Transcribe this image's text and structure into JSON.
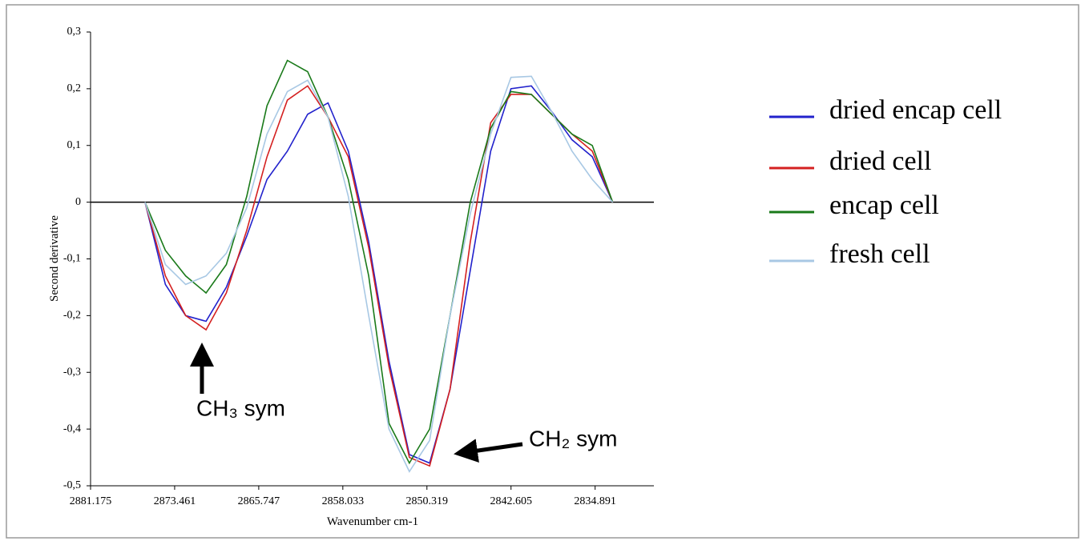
{
  "chart_data": {
    "type": "line",
    "x_label": "Wavenumber cm-1",
    "y_label": "Second derivative",
    "x": [
      2876.18,
      2874.31,
      2872.45,
      2870.58,
      2868.72,
      2866.85,
      2864.99,
      2863.12,
      2861.26,
      2859.39,
      2857.53,
      2855.66,
      2853.8,
      2851.93,
      2850.07,
      2848.2,
      2846.34,
      2844.47,
      2842.61,
      2840.74,
      2838.88,
      2837.01,
      2835.15,
      2833.28
    ],
    "series": [
      {
        "name": "dried encap cell",
        "color": "#2222cc",
        "values": [
          0,
          -0.145,
          -0.2,
          -0.21,
          -0.15,
          -0.06,
          0.04,
          0.09,
          0.155,
          0.175,
          0.09,
          -0.07,
          -0.28,
          -0.445,
          -0.46,
          -0.33,
          -0.12,
          0.09,
          0.2,
          0.205,
          0.16,
          0.11,
          0.08,
          0
        ]
      },
      {
        "name": "dried cell",
        "color": "#d42020",
        "values": [
          0,
          -0.13,
          -0.2,
          -0.225,
          -0.16,
          -0.05,
          0.08,
          0.18,
          0.205,
          0.15,
          0.08,
          -0.08,
          -0.29,
          -0.45,
          -0.465,
          -0.33,
          -0.07,
          0.14,
          0.19,
          0.19,
          0.155,
          0.12,
          0.09,
          0
        ]
      },
      {
        "name": "encap cell",
        "color": "#1a7a1a",
        "values": [
          0,
          -0.085,
          -0.13,
          -0.16,
          -0.11,
          0.01,
          0.17,
          0.25,
          0.23,
          0.15,
          0.04,
          -0.13,
          -0.39,
          -0.46,
          -0.4,
          -0.2,
          0.0,
          0.13,
          0.195,
          0.19,
          0.155,
          0.12,
          0.1,
          0
        ]
      },
      {
        "name": "fresh cell",
        "color": "#a8c8e4",
        "values": [
          0,
          -0.11,
          -0.145,
          -0.13,
          -0.09,
          -0.01,
          0.12,
          0.195,
          0.215,
          0.15,
          0.01,
          -0.2,
          -0.4,
          -0.475,
          -0.42,
          -0.2,
          -0.02,
          0.12,
          0.22,
          0.222,
          0.16,
          0.09,
          0.04,
          0
        ]
      }
    ],
    "xlim": [
      2881.175,
      2829.5
    ],
    "xticks": [
      2881.175,
      2873.461,
      2865.747,
      2858.033,
      2850.319,
      2842.605,
      2834.891
    ],
    "ylim": [
      -0.5,
      0.3
    ],
    "yticks": [
      {
        "value": 0.3,
        "label": "0,3"
      },
      {
        "value": 0.2,
        "label": "0,2"
      },
      {
        "value": 0.1,
        "label": "0,1"
      },
      0,
      {
        "value": -0.1,
        "label": "-0,1"
      },
      {
        "value": -0.2,
        "label": "-0,2"
      },
      {
        "value": -0.3,
        "label": "-0,3"
      },
      {
        "value": -0.4,
        "label": "-0,4"
      },
      {
        "value": -0.5,
        "label": "-0,5"
      }
    ],
    "zero_line": true,
    "legend": "right",
    "annotations": [
      "CH₃ sym",
      "CH₂ sym"
    ]
  }
}
